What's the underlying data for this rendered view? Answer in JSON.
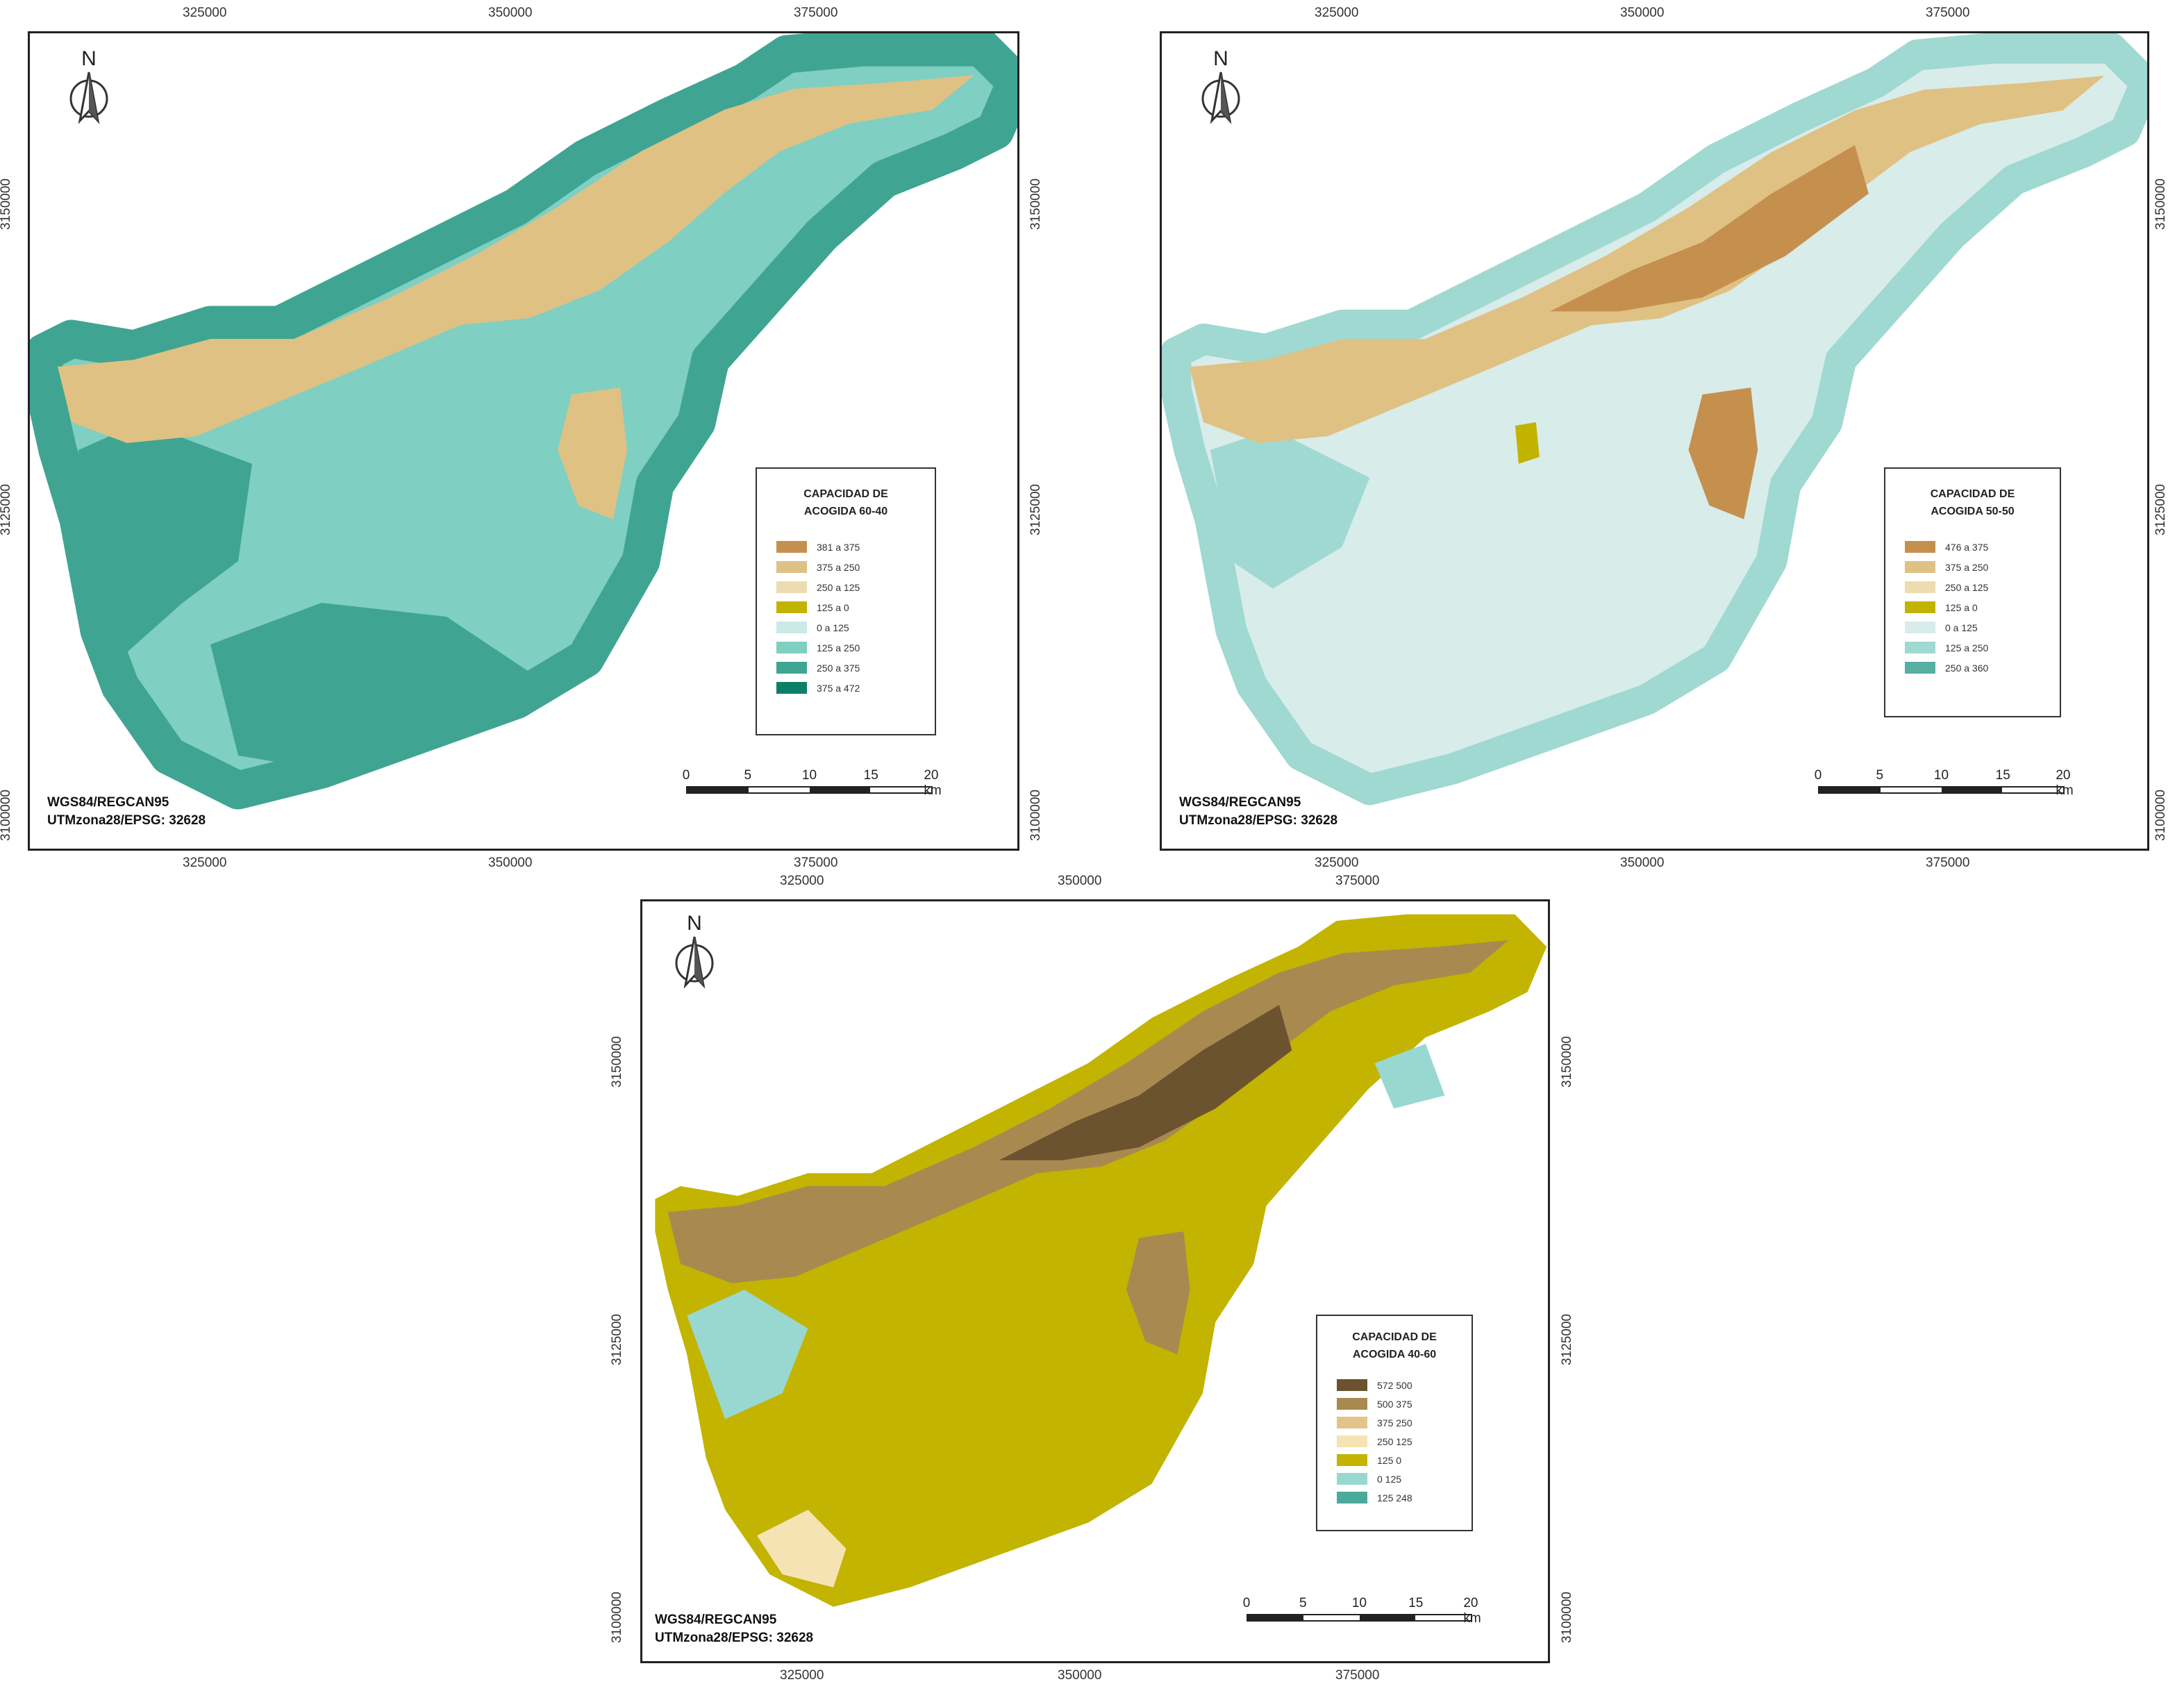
{
  "maps": [
    {
      "id": "map-60-40",
      "legend_title": [
        "CAPACIDAD DE",
        "ACOGIDA 60-40"
      ],
      "legend": [
        {
          "label": "381 a  375",
          "color": "#c58f4e"
        },
        {
          "label": "375 a  250",
          "color": "#dfc184"
        },
        {
          "label": "250 a  125",
          "color": "#ecdcb0"
        },
        {
          "label": "125 a 0",
          "color": "#c2b300"
        },
        {
          "label": "0 a 125",
          "color": "#cbe9e5"
        },
        {
          "label": "125 a 250",
          "color": "#7fcfc2"
        },
        {
          "label": "250 a 375",
          "color": "#3fa592"
        },
        {
          "label": "375 a 472",
          "color": "#0e7f67"
        }
      ],
      "crs": [
        "WGS84/REGCAN95",
        "UTMzona28/EPSG: 32628"
      ]
    },
    {
      "id": "map-50-50",
      "legend_title": [
        "CAPACIDAD DE",
        "ACOGIDA 50-50"
      ],
      "legend": [
        {
          "label": "476 a  375",
          "color": "#c58f4e"
        },
        {
          "label": "375 a  250",
          "color": "#dfc184"
        },
        {
          "label": "250 a  125",
          "color": "#ecdcb0"
        },
        {
          "label": "125 a 0",
          "color": "#c2b300"
        },
        {
          "label": "0 a 125",
          "color": "#d8ecea"
        },
        {
          "label": "125 a 250",
          "color": "#9fd9d1"
        },
        {
          "label": "250 a 360",
          "color": "#55afa2"
        }
      ],
      "crs": [
        "WGS84/REGCAN95",
        "UTMzona28/EPSG: 32628"
      ]
    },
    {
      "id": "map-40-60",
      "legend_title": [
        "CAPACIDAD DE",
        "ACOGIDA 40-60"
      ],
      "legend": [
        {
          "label": "572   500",
          "color": "#6b5330"
        },
        {
          "label": "500   375",
          "color": "#a88a50"
        },
        {
          "label": "375   250",
          "color": "#e2c48b"
        },
        {
          "label": "250   125",
          "color": "#f6e3b4"
        },
        {
          "label": "125   0",
          "color": "#c2b400"
        },
        {
          "label": "0   125",
          "color": "#98d8d0"
        },
        {
          "label": "125   248",
          "color": "#4aa99b"
        }
      ],
      "crs": [
        "WGS84/REGCAN95",
        "UTMzona28/EPSG: 32628"
      ]
    }
  ],
  "axis_labels": {
    "x": [
      "325000",
      "350000",
      "375000"
    ],
    "y": [
      "3150000",
      "3125000",
      "3100000"
    ]
  },
  "north_label": "N",
  "scale_bar": {
    "labels": [
      "0",
      "5",
      "10",
      "15",
      "20 km"
    ]
  },
  "island_colors": {
    "map-60-40": {
      "base": "#7fcfc2",
      "coast": "#3fa592",
      "ridge": "#dfc184",
      "dark": "#0e7f67"
    },
    "map-50-50": {
      "base": "#d8ecea",
      "coast": "#9fd9d1",
      "ridge": "#dfc184",
      "dark": "#c58f4e"
    },
    "map-40-60": {
      "base": "#c2b400",
      "coast": "#98d8d0",
      "ridge": "#a88a50",
      "dark": "#6b5330"
    }
  }
}
